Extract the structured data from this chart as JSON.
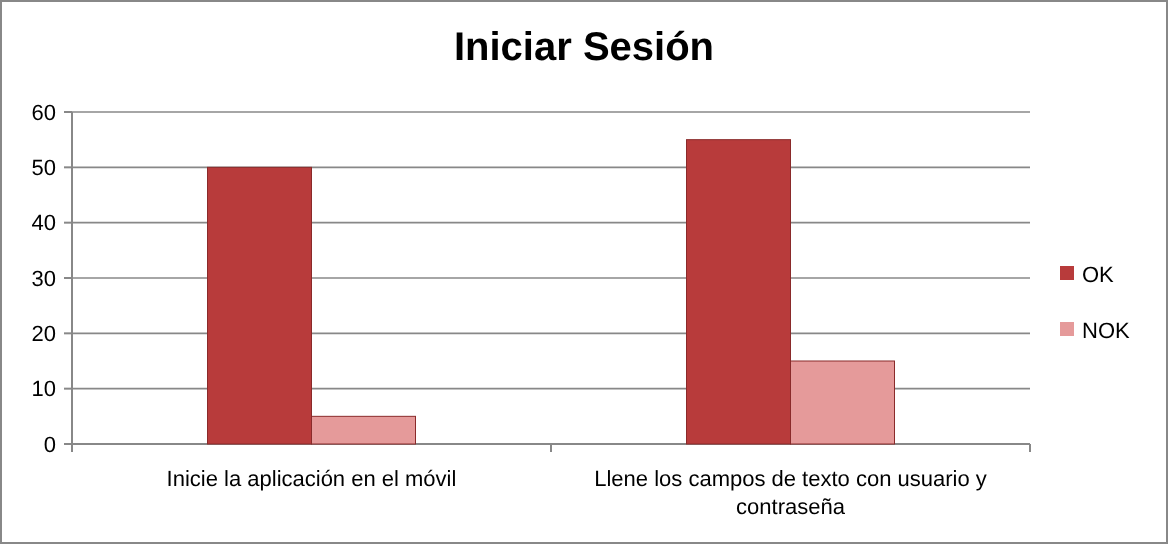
{
  "chart_data": {
    "type": "bar",
    "title": "Iniciar Sesión",
    "categories": [
      "Inicie la aplicación en el móvil",
      "Llene los campos de texto con usuario y contraseña"
    ],
    "series": [
      {
        "name": "OK",
        "color": "#b83b3b",
        "values": [
          50,
          55
        ]
      },
      {
        "name": "NOK",
        "color": "#e59a9a",
        "values": [
          5,
          15
        ]
      }
    ],
    "ylim": [
      0,
      60
    ],
    "yticks": [
      0,
      10,
      20,
      30,
      40,
      50,
      60
    ],
    "grid": "y",
    "legend": "right"
  }
}
